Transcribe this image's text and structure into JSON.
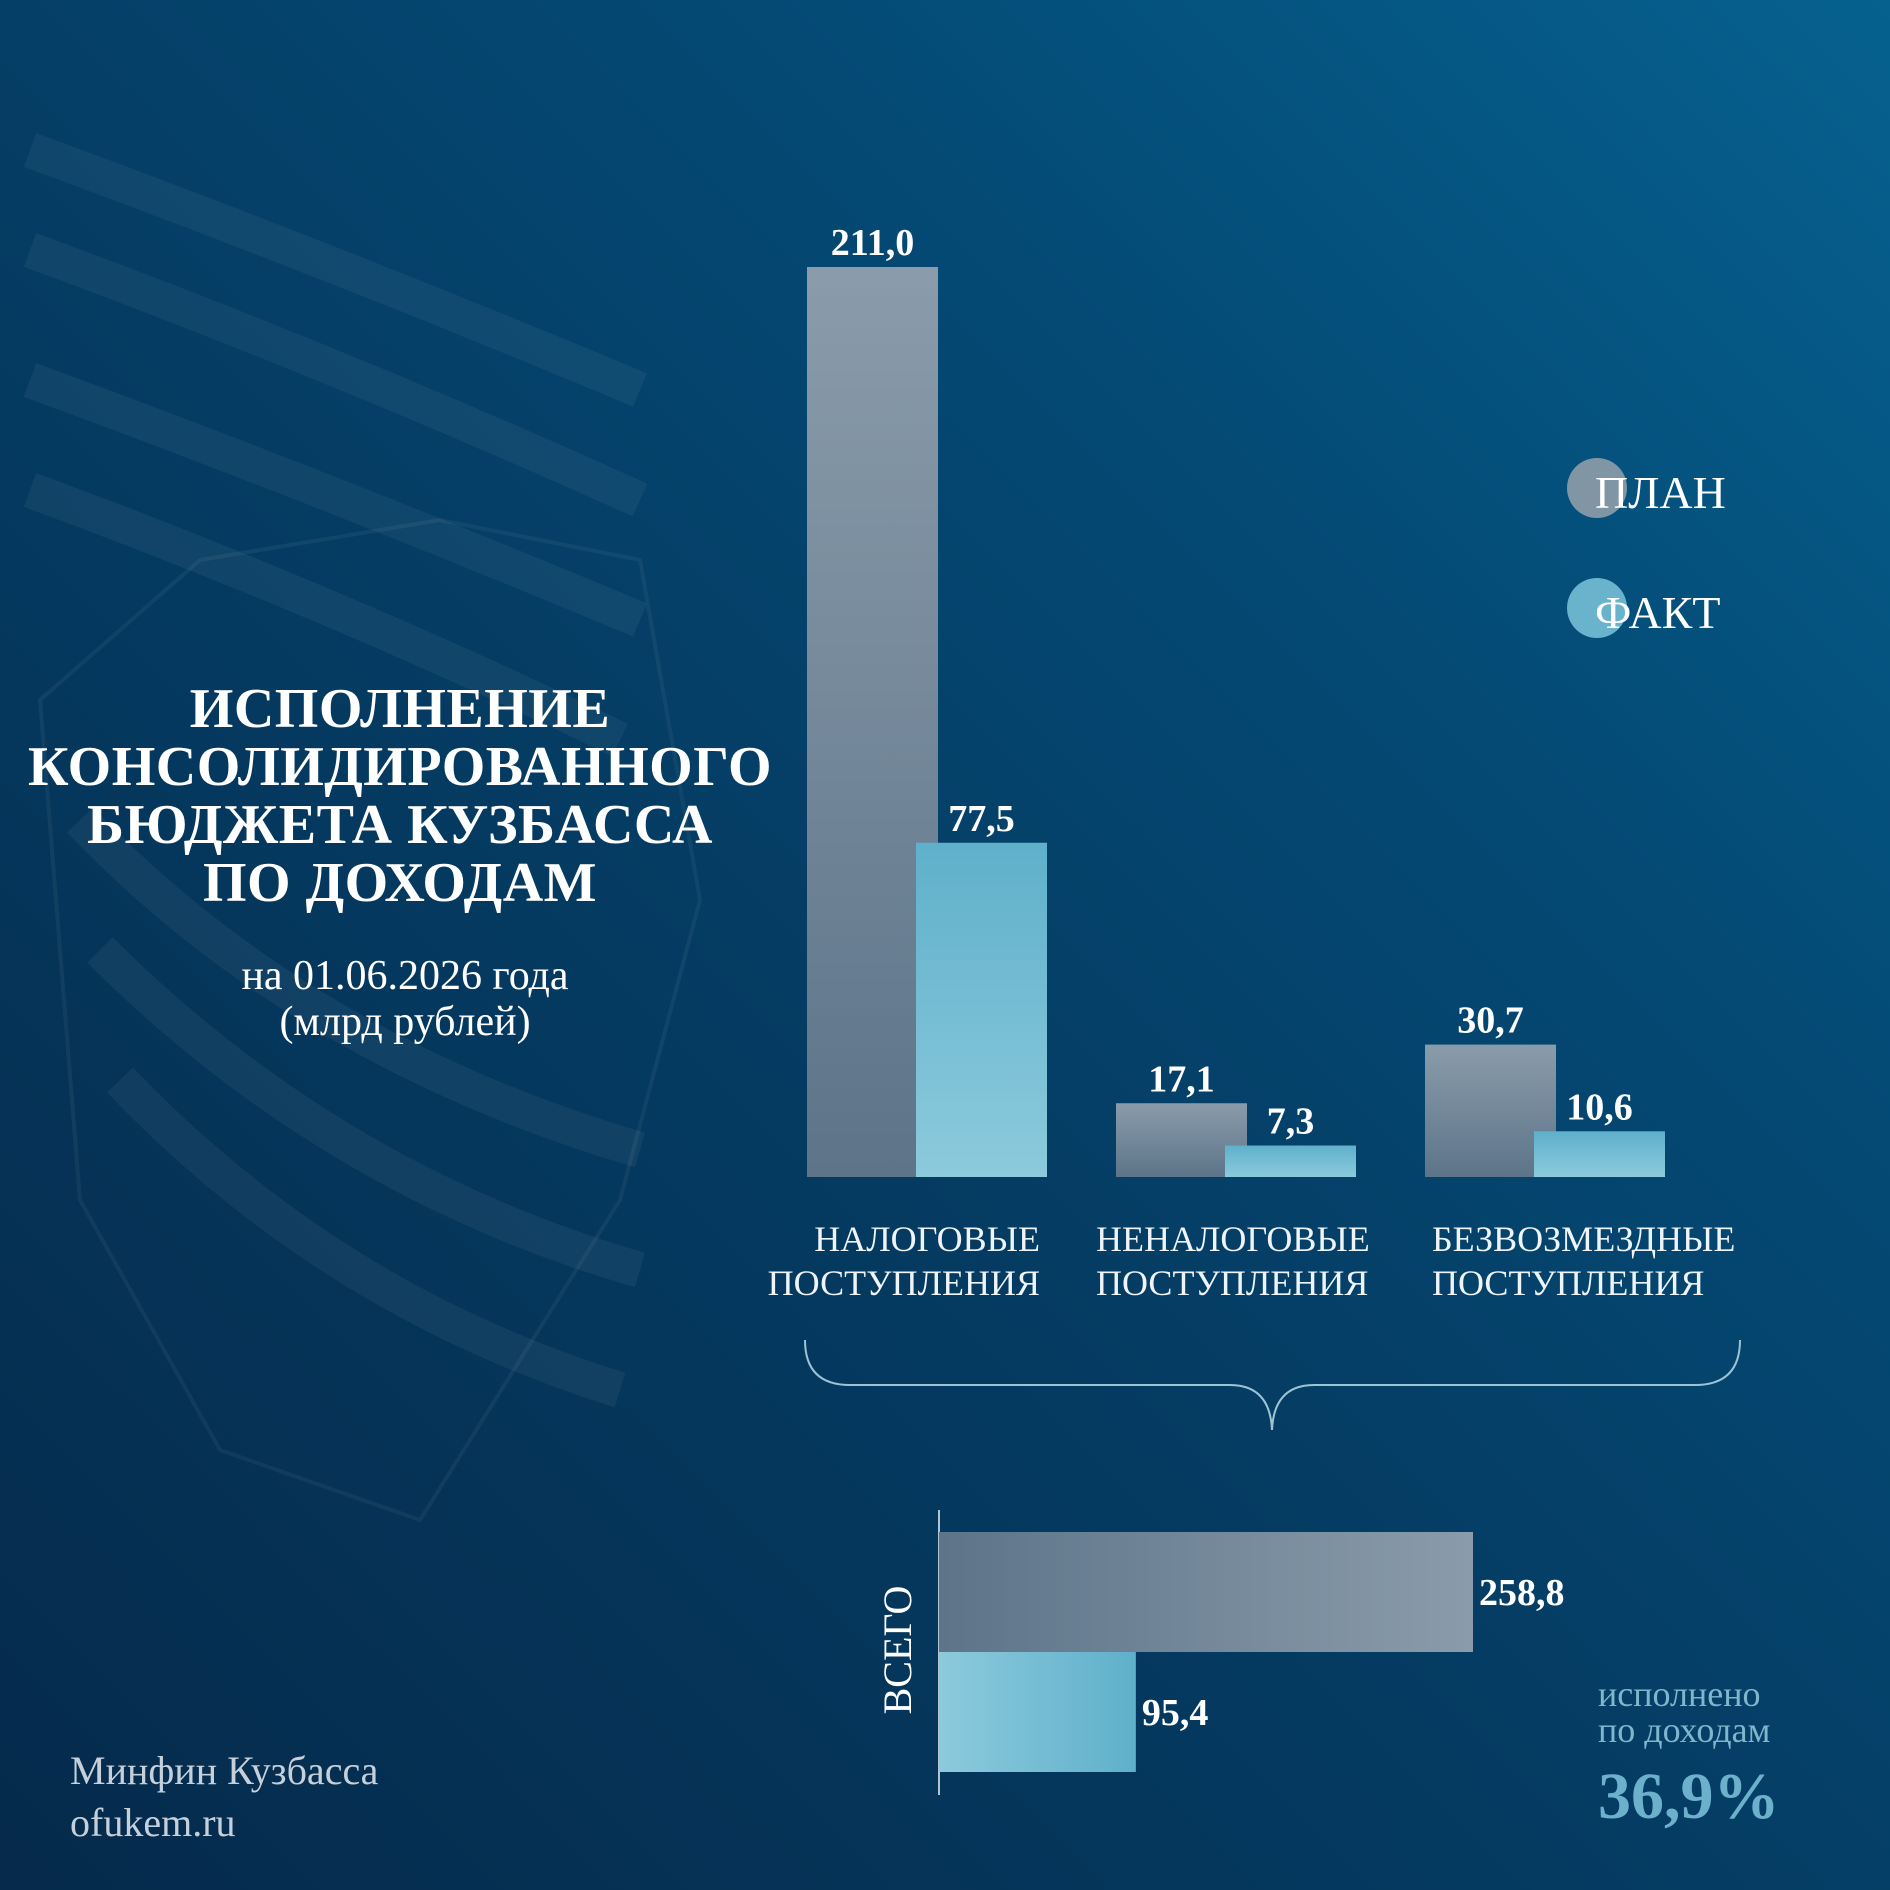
{
  "title_lines": [
    "ИСПОЛНЕНИЕ",
    "КОНСОЛИДИРОВАННОГО",
    "БЮДЖЕТА КУЗБАССА",
    "ПО ДОХОДАМ"
  ],
  "subtitle_lines": [
    "на 01.06.2026 года",
    "(млрд рублей)"
  ],
  "legend": [
    {
      "label": "ПЛАН",
      "color": "#8196a5"
    },
    {
      "label": "ФАКТ",
      "color": "#6ab3cc"
    }
  ],
  "chart_data": [
    {
      "type": "bar",
      "categories": [
        [
          "НАЛОГОВЫЕ",
          "ПОСТУПЛЕНИЯ"
        ],
        [
          "НЕНАЛОГОВЫЕ",
          "ПОСТУПЛЕНИЯ"
        ],
        [
          "БЕЗВОЗМЕЗДНЫЕ",
          "ПОСТУПЛЕНИЯ"
        ]
      ],
      "series": [
        {
          "name": "ПЛАН",
          "values": [
            211.0,
            17.1,
            30.7
          ],
          "labels": [
            "211,0",
            "17,1",
            "30,7"
          ]
        },
        {
          "name": "ФАКТ",
          "values": [
            77.5,
            7.3,
            10.6
          ],
          "labels": [
            "77,5",
            "7,3",
            "10,6"
          ]
        }
      ],
      "ylim": [
        0,
        211.0
      ],
      "grid": false,
      "legend_position": "right"
    },
    {
      "type": "bar",
      "orientation": "horizontal",
      "category": "ВСЕГО",
      "series": [
        {
          "name": "ПЛАН",
          "values": [
            258.8
          ],
          "labels": [
            "258,8"
          ]
        },
        {
          "name": "ФАКТ",
          "values": [
            95.4
          ],
          "labels": [
            "95,4"
          ]
        }
      ],
      "xlim": [
        0,
        258.8
      ]
    }
  ],
  "executed": {
    "label_lines": [
      "исполнено",
      "по доходам"
    ],
    "value": "36,9%"
  },
  "footer_lines": [
    "Минфин Кузбасса",
    "ofukem.ru"
  ]
}
